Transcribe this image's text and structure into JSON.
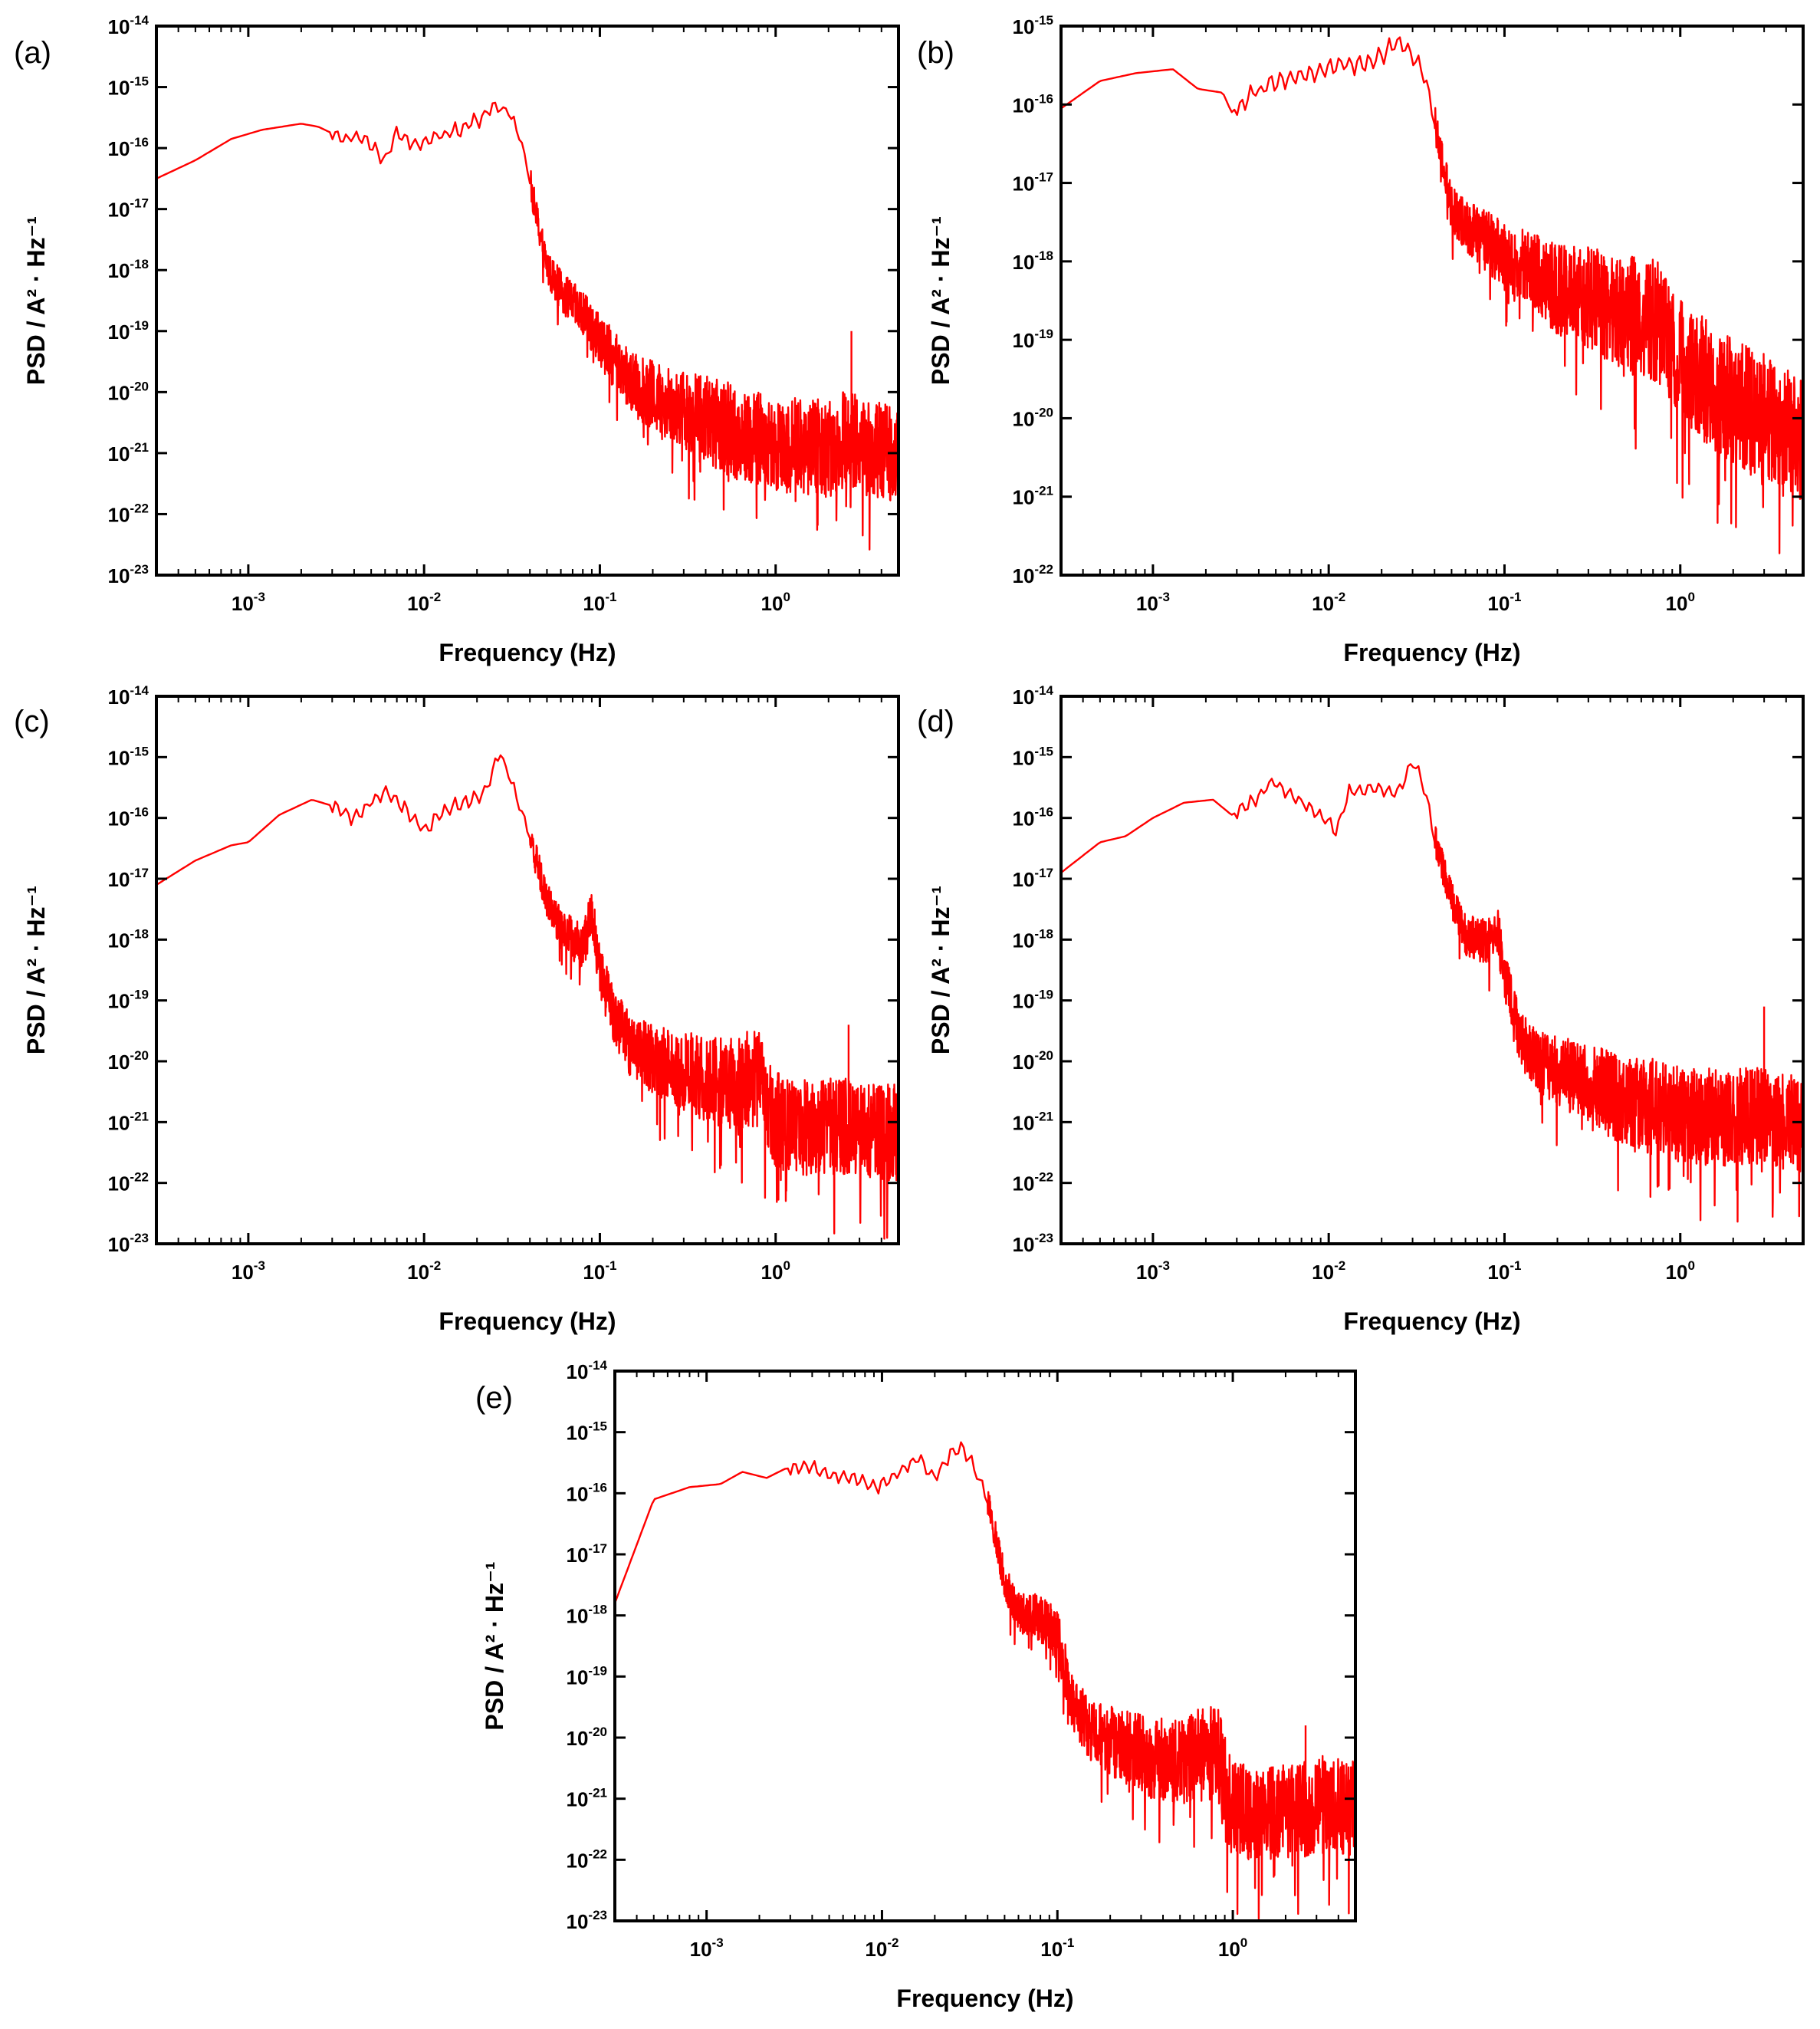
{
  "figure": {
    "series_color": "#ff0000",
    "panel_labels": [
      "(a)",
      "(b)",
      "(c)",
      "(d)",
      "(e)"
    ]
  },
  "chart_data": [
    {
      "panel": "(a)",
      "type": "line",
      "xlabel": "Frequency (Hz)",
      "ylabel": "PSD / A² · Hz⁻¹",
      "xscale": "log",
      "yscale": "log",
      "xlim": [
        0.0003,
        5
      ],
      "ylim_exp": [
        -23,
        -14
      ],
      "x_ticks": [
        "10^-3",
        "10^-2",
        "10^-1",
        "10^0"
      ],
      "y_ticks": [
        "10^-23",
        "10^-22",
        "10^-21",
        "10^-20",
        "10^-19",
        "10^-18",
        "10^-17",
        "10^-16",
        "10^-15",
        "10^-14"
      ],
      "series": [
        {
          "name": "PSD",
          "color": "#ff0000",
          "x": [
            0.0003,
            0.0005,
            0.0008,
            0.0012,
            0.002,
            0.0025,
            0.0035,
            0.0045,
            0.006,
            0.007,
            0.009,
            0.012,
            0.016,
            0.02,
            0.025,
            0.03,
            0.035,
            0.04,
            0.045,
            0.05,
            0.06,
            0.08,
            0.1,
            0.15,
            0.2,
            0.3,
            0.5,
            0.8,
            1,
            1.5,
            2,
            2.7,
            3,
            4,
            5
          ],
          "log10_psd": [
            -16.5,
            -16.2,
            -15.85,
            -15.7,
            -15.6,
            -15.65,
            -15.85,
            -15.8,
            -16.2,
            -15.75,
            -15.95,
            -15.8,
            -15.7,
            -15.55,
            -15.3,
            -15.4,
            -15.8,
            -16.5,
            -17.3,
            -17.9,
            -18.3,
            -18.7,
            -19.1,
            -19.8,
            -20.0,
            -20.2,
            -20.5,
            -20.7,
            -20.8,
            -20.8,
            -20.85,
            -20.6,
            -20.8,
            -20.9,
            -20.9
          ],
          "noise_start_hz": 0.04,
          "spikes": [
            {
              "x": 2.7,
              "log10_psd": -19.0
            }
          ]
        }
      ]
    },
    {
      "panel": "(b)",
      "type": "line",
      "xlabel": "Frequency (Hz)",
      "ylabel": "PSD / A² · Hz⁻¹",
      "xscale": "log",
      "yscale": "log",
      "xlim": [
        0.0003,
        5
      ],
      "ylim_exp": [
        -22,
        -15
      ],
      "x_ticks": [
        "10^-3",
        "10^-2",
        "10^-1",
        "10^0"
      ],
      "y_ticks": [
        "10^-22",
        "10^-21",
        "10^-20",
        "10^-19",
        "10^-18",
        "10^-17",
        "10^-16",
        "10^-15"
      ],
      "series": [
        {
          "name": "PSD",
          "color": "#ff0000",
          "x": [
            0.0003,
            0.0005,
            0.0008,
            0.0013,
            0.0018,
            0.0025,
            0.0028,
            0.0035,
            0.005,
            0.008,
            0.012,
            0.018,
            0.025,
            0.028,
            0.035,
            0.04,
            0.045,
            0.05,
            0.06,
            0.08,
            0.1,
            0.15,
            0.2,
            0.3,
            0.5,
            0.8,
            1,
            1.5,
            2,
            3,
            5
          ],
          "log10_psd": [
            -16.05,
            -15.7,
            -15.6,
            -15.55,
            -15.8,
            -15.85,
            -16.1,
            -15.9,
            -15.7,
            -15.6,
            -15.5,
            -15.45,
            -15.2,
            -15.3,
            -15.6,
            -16.2,
            -16.8,
            -17.3,
            -17.5,
            -17.7,
            -17.9,
            -18.1,
            -18.3,
            -18.4,
            -18.6,
            -18.7,
            -19.2,
            -19.5,
            -19.7,
            -19.9,
            -20.2
          ],
          "noise_start_hz": 0.04,
          "spikes": []
        }
      ]
    },
    {
      "panel": "(c)",
      "type": "line",
      "xlabel": "Frequency (Hz)",
      "ylabel": "PSD / A² · Hz⁻¹",
      "xscale": "log",
      "yscale": "log",
      "xlim": [
        0.0003,
        5
      ],
      "ylim_exp": [
        -23,
        -14
      ],
      "x_ticks": [
        "10^-3",
        "10^-2",
        "10^-1",
        "10^0"
      ],
      "y_ticks": [
        "10^-23",
        "10^-22",
        "10^-21",
        "10^-20",
        "10^-19",
        "10^-18",
        "10^-17",
        "10^-16",
        "10^-15",
        "10^-14"
      ],
      "series": [
        {
          "name": "PSD",
          "color": "#ff0000",
          "x": [
            0.0003,
            0.0005,
            0.0008,
            0.001,
            0.0015,
            0.0023,
            0.003,
            0.004,
            0.005,
            0.006,
            0.008,
            0.01,
            0.013,
            0.018,
            0.022,
            0.027,
            0.032,
            0.04,
            0.05,
            0.06,
            0.08,
            0.09,
            0.1,
            0.12,
            0.15,
            0.2,
            0.3,
            0.5,
            0.8,
            1,
            1.5,
            2.5,
            3,
            5
          ],
          "log10_psd": [
            -17.1,
            -16.7,
            -16.45,
            -16.4,
            -15.95,
            -15.7,
            -15.8,
            -16.0,
            -15.75,
            -15.55,
            -15.9,
            -16.2,
            -15.9,
            -15.7,
            -15.6,
            -14.9,
            -15.5,
            -16.3,
            -17.3,
            -17.8,
            -18.1,
            -17.5,
            -18.5,
            -19.2,
            -19.7,
            -19.9,
            -20.1,
            -20.3,
            -20.2,
            -20.9,
            -21.0,
            -21.0,
            -21.1,
            -21.1
          ],
          "noise_start_hz": 0.04,
          "spikes": [
            {
              "x": 2.6,
              "log10_psd": -19.4
            }
          ]
        }
      ]
    },
    {
      "panel": "(d)",
      "type": "line",
      "xlabel": "Frequency (Hz)",
      "ylabel": "PSD / A² · Hz⁻¹",
      "xscale": "log",
      "yscale": "log",
      "xlim": [
        0.0003,
        5
      ],
      "ylim_exp": [
        -23,
        -14
      ],
      "x_ticks": [
        "10^-3",
        "10^-2",
        "10^-1",
        "10^0"
      ],
      "y_ticks": [
        "10^-23",
        "10^-22",
        "10^-21",
        "10^-20",
        "10^-19",
        "10^-18",
        "10^-17",
        "10^-16",
        "10^-15",
        "10^-14"
      ],
      "series": [
        {
          "name": "PSD",
          "color": "#ff0000",
          "x": [
            0.0003,
            0.0005,
            0.0007,
            0.001,
            0.0015,
            0.0022,
            0.0028,
            0.0035,
            0.0048,
            0.006,
            0.008,
            0.011,
            0.013,
            0.018,
            0.025,
            0.03,
            0.035,
            0.04,
            0.05,
            0.06,
            0.08,
            0.09,
            0.1,
            0.12,
            0.15,
            0.2,
            0.3,
            0.5,
            0.8,
            1,
            2,
            3,
            5
          ],
          "log10_psd": [
            -16.9,
            -16.4,
            -16.3,
            -16.0,
            -15.75,
            -15.7,
            -15.95,
            -15.8,
            -15.4,
            -15.6,
            -15.85,
            -16.2,
            -15.6,
            -15.5,
            -15.6,
            -15.05,
            -15.5,
            -16.3,
            -17.3,
            -17.9,
            -18.0,
            -17.7,
            -18.5,
            -19.5,
            -19.9,
            -20.1,
            -20.3,
            -20.6,
            -20.7,
            -20.8,
            -20.85,
            -20.8,
            -21.0
          ],
          "noise_start_hz": 0.04,
          "spikes": [
            {
              "x": 3.0,
              "log10_psd": -19.1
            }
          ]
        }
      ]
    },
    {
      "panel": "(e)",
      "type": "line",
      "xlabel": "Frequency (Hz)",
      "ylabel": "PSD / A² · Hz⁻¹",
      "xscale": "log",
      "yscale": "log",
      "xlim": [
        0.0003,
        5
      ],
      "ylim_exp": [
        -23,
        -14
      ],
      "x_ticks": [
        "10^-3",
        "10^-2",
        "10^-1",
        "10^0"
      ],
      "y_ticks": [
        "10^-23",
        "10^-22",
        "10^-21",
        "10^-20",
        "10^-19",
        "10^-18",
        "10^-17",
        "10^-16",
        "10^-15",
        "10^-14"
      ],
      "series": [
        {
          "name": "PSD",
          "color": "#ff0000",
          "x": [
            0.0003,
            0.0005,
            0.0008,
            0.0012,
            0.0016,
            0.0022,
            0.0028,
            0.0038,
            0.005,
            0.007,
            0.009,
            0.012,
            0.016,
            0.02,
            0.025,
            0.03,
            0.04,
            0.05,
            0.06,
            0.08,
            0.1,
            0.12,
            0.15,
            0.2,
            0.3,
            0.5,
            0.8,
            1,
            1.5,
            2.5,
            3,
            5
          ],
          "log10_psd": [
            -17.8,
            -16.1,
            -15.9,
            -15.85,
            -15.65,
            -15.75,
            -15.6,
            -15.55,
            -15.7,
            -15.75,
            -15.9,
            -15.7,
            -15.4,
            -15.75,
            -15.3,
            -15.3,
            -16.1,
            -17.4,
            -17.9,
            -18.0,
            -18.3,
            -19.3,
            -19.8,
            -20.0,
            -20.2,
            -20.4,
            -20.1,
            -21.1,
            -21.2,
            -21.1,
            -21.0,
            -21.1
          ],
          "noise_start_hz": 0.04,
          "spikes": [
            {
              "x": 2.6,
              "log10_psd": -19.8
            }
          ]
        }
      ]
    }
  ]
}
